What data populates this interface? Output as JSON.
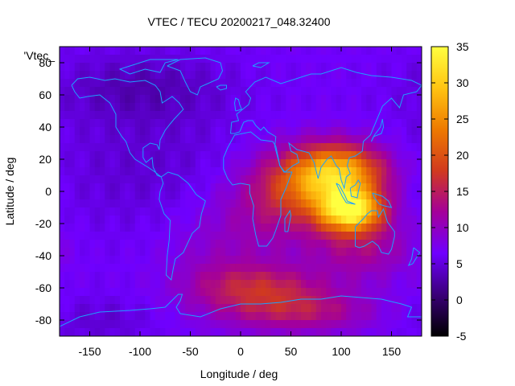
{
  "chart_data": {
    "type": "heatmap",
    "title": "VTEC / TECU 20200217_048.32400",
    "xlabel": "Longitude / deg",
    "ylabel": "Latitude / deg",
    "key_label": "'Vtec_",
    "xlim": [
      -180,
      180
    ],
    "ylim": [
      -90,
      90
    ],
    "xticks": [
      -150,
      -100,
      -50,
      0,
      50,
      100,
      150
    ],
    "yticks": [
      -80,
      -60,
      -40,
      -20,
      0,
      20,
      40,
      60,
      80
    ],
    "colorbar": {
      "range": [
        -5,
        35
      ],
      "ticks": [
        -5,
        0,
        5,
        10,
        15,
        20,
        25,
        30,
        35
      ],
      "palette": [
        "#000000",
        "#3a0078",
        "#6f00ff",
        "#a4009a",
        "#d13a1e",
        "#ee7a00",
        "#ffc412",
        "#ffff40"
      ]
    },
    "field": {
      "background_tecu": 6.5,
      "features": [
        {
          "lon": 110,
          "lat": -12,
          "amp": 25,
          "slon": 22,
          "slat": 9
        },
        {
          "lon": 100,
          "lat": 12,
          "amp": 17,
          "slon": 32,
          "slat": 12
        },
        {
          "lon": 75,
          "lat": 5,
          "amp": 9,
          "slon": 35,
          "slat": 15
        },
        {
          "lon": 40,
          "lat": -5,
          "amp": 6,
          "slon": 38,
          "slat": 20
        },
        {
          "lon": 120,
          "lat": -35,
          "amp": 6,
          "slon": 35,
          "slat": 14
        },
        {
          "lon": 20,
          "lat": -60,
          "amp": 8,
          "slon": 45,
          "slat": 10
        },
        {
          "lon": 60,
          "lat": -75,
          "amp": 7,
          "slon": 50,
          "slat": 9
        },
        {
          "lon": -20,
          "lat": -40,
          "amp": 3,
          "slon": 40,
          "slat": 25
        },
        {
          "lon": -90,
          "lat": 15,
          "amp": -2,
          "slon": 80,
          "slat": 30
        },
        {
          "lon": -100,
          "lat": 65,
          "amp": -3,
          "slon": 60,
          "slat": 15
        },
        {
          "lon": -140,
          "lat": -80,
          "amp": -2,
          "slon": 40,
          "slat": 10
        }
      ]
    }
  }
}
